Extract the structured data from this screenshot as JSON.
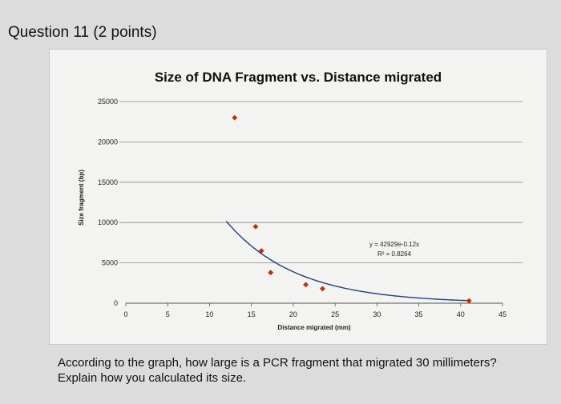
{
  "question": {
    "header": "Question 11 (2 points)",
    "prompt": "According to the graph, how large is a PCR fragment that migrated 30 millimeters? Explain how you calculated its size."
  },
  "chart_data": {
    "type": "scatter",
    "title": "Size of DNA Fragment vs. Distance migrated",
    "xlabel": "Distance migrated (mm)",
    "ylabel": "Size fragment (bp)",
    "xlim": [
      0,
      45
    ],
    "ylim": [
      0,
      25000
    ],
    "x_ticks": [
      0,
      5,
      10,
      15,
      20,
      25,
      30,
      35,
      40,
      45
    ],
    "y_ticks": [
      0,
      5000,
      10000,
      15000,
      20000,
      25000
    ],
    "x_tick_labels": [
      "0",
      "5",
      "10",
      "15",
      "20",
      "25",
      "30",
      "35",
      "40",
      "45"
    ],
    "y_tick_labels": [
      "0",
      "5000",
      "10000",
      "15000",
      "20000",
      "25000"
    ],
    "grid": "horizontal",
    "points": [
      {
        "x": 13,
        "y": 23000
      },
      {
        "x": 15.5,
        "y": 9500
      },
      {
        "x": 16.2,
        "y": 6500
      },
      {
        "x": 17.3,
        "y": 3800
      },
      {
        "x": 21.5,
        "y": 2300
      },
      {
        "x": 23.5,
        "y": 1800
      },
      {
        "x": 41,
        "y": 300
      }
    ],
    "trendline": {
      "type": "exponential",
      "a": 42929,
      "b": -0.12,
      "x_range": [
        12,
        41
      ]
    },
    "equation_lines": [
      "y = 42929e-0.12x",
      "R² = 0.8264"
    ],
    "marker_color": "#cc2a00",
    "trend_color": "#1f3f7a"
  }
}
